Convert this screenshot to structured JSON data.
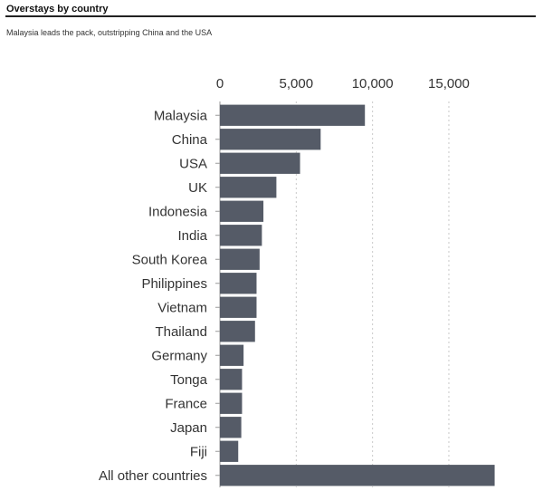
{
  "header": {
    "title": "Overstays by country",
    "subtitle": "Malaysia leads the pack, outstripping China and the USA"
  },
  "colors": {
    "bar": "#555b67",
    "grid": "#c9c9c9",
    "axis": "#9a9a9a",
    "text": "#333333"
  },
  "chart_data": {
    "type": "bar",
    "orientation": "horizontal",
    "title": "Overstays by country",
    "subtitle": "Malaysia leads the pack, outstripping China and the USA",
    "xlabel": "",
    "ylabel": "",
    "xlim": [
      0,
      18500
    ],
    "ticks": [
      0,
      5000,
      10000,
      15000
    ],
    "tick_labels": [
      "0",
      "5,000",
      "10,000",
      "15,000"
    ],
    "grid": "vertical dotted",
    "categories": [
      "Malaysia",
      "China",
      "USA",
      "UK",
      "Indonesia",
      "India",
      "South Korea",
      "Philippines",
      "Vietnam",
      "Thailand",
      "Germany",
      "Tonga",
      "France",
      "Japan",
      "Fiji",
      "All other countries"
    ],
    "values": [
      9500,
      6600,
      5250,
      3700,
      2850,
      2750,
      2600,
      2400,
      2400,
      2300,
      1550,
      1450,
      1450,
      1400,
      1200,
      18000
    ]
  }
}
